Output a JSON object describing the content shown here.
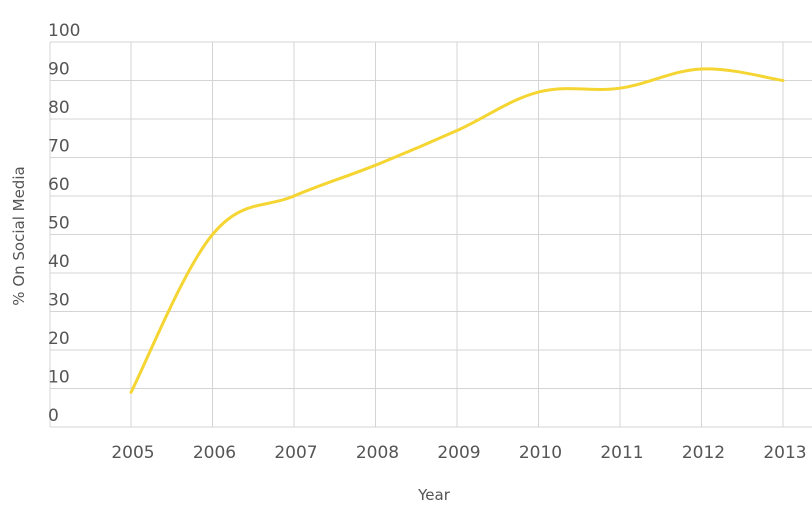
{
  "chart_data": {
    "type": "line",
    "title": "",
    "xlabel": "Year",
    "ylabel": "% On Social Media",
    "x": [
      "2005",
      "2006",
      "2007",
      "2008",
      "2009",
      "2010",
      "2011",
      "2012",
      "2013"
    ],
    "y_ticks": [
      "0",
      "10",
      "20",
      "30",
      "40",
      "50",
      "60",
      "70",
      "80",
      "90",
      "100"
    ],
    "ylim": [
      0,
      100
    ],
    "grid": true,
    "legend": "none",
    "series": [
      {
        "values": [
          9,
          50,
          60,
          68,
          77,
          87,
          88,
          93,
          90
        ],
        "color": "#f5d532"
      }
    ]
  }
}
